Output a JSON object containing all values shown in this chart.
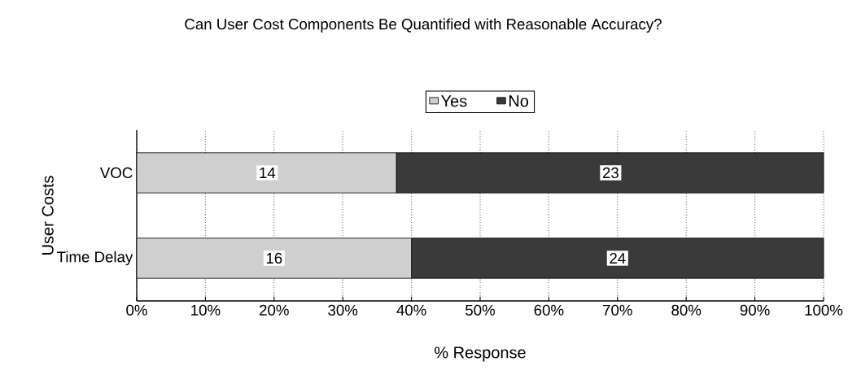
{
  "chart_data": {
    "type": "bar",
    "orientation": "horizontal",
    "stacked": true,
    "title": "Can User Cost Components Be Quantified with Reasonable Accuracy?",
    "xlabel": "% Response",
    "ylabel": "User Costs",
    "categories": [
      "VOC",
      "Time Delay"
    ],
    "series": [
      {
        "name": "Yes",
        "color": "#cfcfcf",
        "values": [
          37.8,
          40
        ]
      },
      {
        "name": "No",
        "color": "#3a3a3a",
        "values": [
          62.2,
          60
        ]
      }
    ],
    "annotations": [
      {
        "text": "14",
        "x": 19,
        "y": "VOC"
      },
      {
        "text": "23",
        "x": 69,
        "y": "VOC"
      },
      {
        "text": "16",
        "x": 20,
        "y": "Time Delay"
      },
      {
        "text": "24",
        "x": 70,
        "y": "Time Delay"
      }
    ],
    "xlim": [
      0,
      100
    ],
    "xticks": [
      {
        "value": 0,
        "label": "0%"
      },
      {
        "value": 10,
        "label": "10%"
      },
      {
        "value": 20,
        "label": "20%"
      },
      {
        "value": 30,
        "label": "30%"
      },
      {
        "value": 40,
        "label": "40%"
      },
      {
        "value": 50,
        "label": "50%"
      },
      {
        "value": 60,
        "label": "60%"
      },
      {
        "value": 70,
        "label": "70%"
      },
      {
        "value": 80,
        "label": "80%"
      },
      {
        "value": 90,
        "label": "90%"
      },
      {
        "value": 100,
        "label": "100%"
      }
    ],
    "grid": "x",
    "legend": "top"
  }
}
